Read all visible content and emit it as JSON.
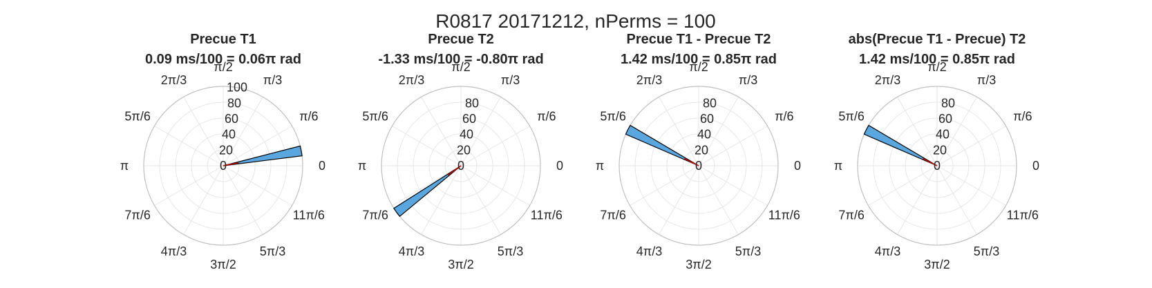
{
  "figure": {
    "title": "R0817 20171212, nPerms = 100"
  },
  "chart_data": [
    {
      "type": "polar-histogram",
      "title": "Precue T1",
      "subtitle": "0.09 ms/100 = 0.06π rad",
      "theta_tick_labels": [
        "0",
        "π/6",
        "π/3",
        "π/2",
        "2π/3",
        "5π/6",
        "π",
        "7π/6",
        "4π/3",
        "3π/2",
        "5π/3",
        "11π/6"
      ],
      "r_ticks": [
        0,
        20,
        40,
        60,
        80,
        100
      ],
      "rlim": [
        0,
        100
      ],
      "bins": [
        {
          "theta_start": 0.04,
          "theta_end": 0.08,
          "count": 100
        }
      ],
      "mean_angle": 0.06,
      "mean_length": 20,
      "bar_color": "#5aa7e0",
      "mean_color": "#cc0000",
      "angle_unit": "π rad"
    },
    {
      "type": "polar-histogram",
      "title": "Precue T2",
      "subtitle": "-1.33 ms/100 = -0.80π rad",
      "theta_tick_labels": [
        "0",
        "π/6",
        "π/3",
        "π/2",
        "2π/3",
        "5π/6",
        "π",
        "7π/6",
        "4π/3",
        "3π/2",
        "5π/3",
        "11π/6"
      ],
      "r_ticks": [
        0,
        20,
        40,
        60,
        80
      ],
      "rlim": [
        0,
        100
      ],
      "bins": [
        {
          "theta_start": 1.18,
          "theta_end": 1.22,
          "count": 100
        }
      ],
      "mean_angle": 1.2,
      "mean_length": 20,
      "bar_color": "#5aa7e0",
      "mean_color": "#cc0000",
      "angle_unit": "π rad"
    },
    {
      "type": "polar-histogram",
      "title": "Precue T1 - Precue T2",
      "subtitle": "1.42 ms/100 = 0.85π rad",
      "theta_tick_labels": [
        "0",
        "π/6",
        "π/3",
        "π/2",
        "2π/3",
        "5π/6",
        "π",
        "7π/6",
        "4π/3",
        "3π/2",
        "5π/3",
        "11π/6"
      ],
      "r_ticks": [
        0,
        20,
        40,
        60,
        80
      ],
      "rlim": [
        0,
        100
      ],
      "bins": [
        {
          "theta_start": 0.83,
          "theta_end": 0.87,
          "count": 100
        }
      ],
      "mean_angle": 0.85,
      "mean_length": 20,
      "bar_color": "#5aa7e0",
      "mean_color": "#cc0000",
      "angle_unit": "π rad"
    },
    {
      "type": "polar-histogram",
      "title": "abs(Precue T1 - Precue) T2",
      "subtitle": "1.42 ms/100 = 0.85π rad",
      "theta_tick_labels": [
        "0",
        "π/6",
        "π/3",
        "π/2",
        "2π/3",
        "5π/6",
        "π",
        "7π/6",
        "4π/3",
        "3π/2",
        "5π/3",
        "11π/6"
      ],
      "r_ticks": [
        0,
        20,
        40,
        60,
        80
      ],
      "rlim": [
        0,
        100
      ],
      "bins": [
        {
          "theta_start": 0.83,
          "theta_end": 0.87,
          "count": 100
        }
      ],
      "mean_angle": 0.85,
      "mean_length": 20,
      "bar_color": "#5aa7e0",
      "mean_color": "#cc0000",
      "angle_unit": "π rad"
    }
  ]
}
